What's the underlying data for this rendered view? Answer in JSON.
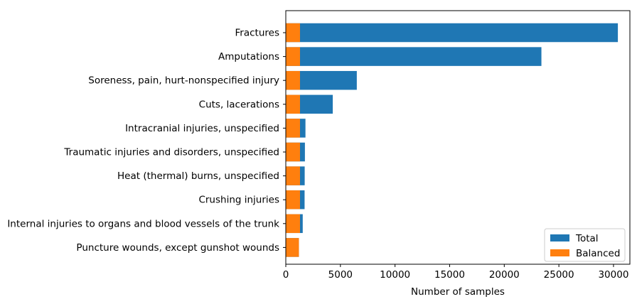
{
  "chart_data": {
    "type": "bar",
    "orientation": "horizontal",
    "title": "",
    "xlabel": "Number of samples",
    "ylabel": "",
    "xlim": [
      0,
      31500
    ],
    "xticks": [
      0,
      5000,
      10000,
      15000,
      20000,
      25000,
      30000
    ],
    "grid": false,
    "legend_position": "lower-right",
    "categories": [
      "Fractures",
      "Amputations",
      "Soreness, pain, hurt-nonspecified injury",
      "Cuts, lacerations",
      "Intracranial injuries, unspecified",
      "Traumatic injuries and disorders, unspecified",
      "Heat (thermal) burns, unspecified",
      "Crushing injuries",
      "Internal injuries to organs and blood vessels of the trunk",
      "Puncture wounds, except gunshot wounds"
    ],
    "series": [
      {
        "name": "Total",
        "color": "#1f77b4",
        "values": [
          30400,
          23400,
          6500,
          4300,
          1800,
          1750,
          1730,
          1720,
          1550,
          1200
        ]
      },
      {
        "name": "Balanced",
        "color": "#ff7f0e",
        "values": [
          1300,
          1300,
          1300,
          1300,
          1300,
          1300,
          1300,
          1300,
          1300,
          1200
        ]
      }
    ]
  }
}
